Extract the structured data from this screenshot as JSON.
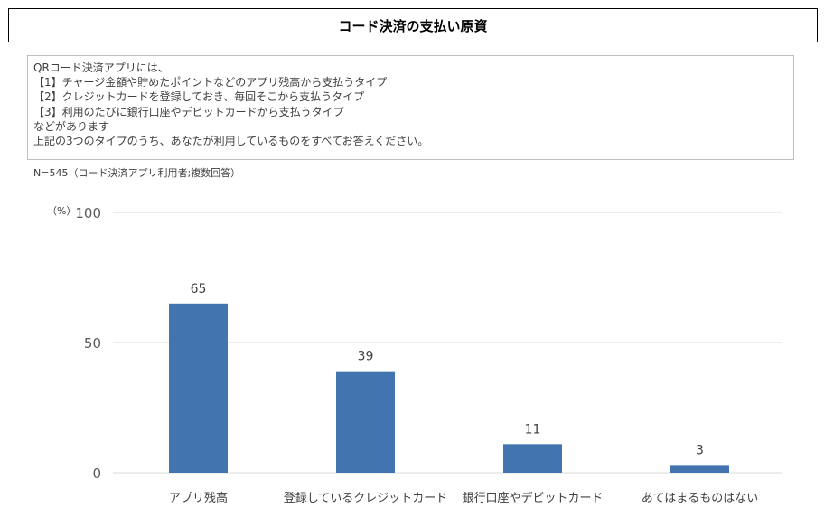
{
  "title": "コード決済の支払い原資",
  "question": [
    "QRコード決済アプリには、",
    "【1】チャージ金額や貯めたポイントなどのアプリ残高から支払うタイプ",
    "【2】クレジットカードを登録しておき、毎回そこから支払うタイプ",
    "【3】利用のたびに銀行口座やデビットカードから支払うタイプ",
    "などがあります",
    "上記の3つのタイプのうち、あなたが利用しているものをすべてお答えください。"
  ],
  "note": "N=545（コード決済アプリ利用者;複数回答）",
  "chart_data": {
    "type": "bar",
    "ylabel": "（%）",
    "ylim": [
      0,
      100
    ],
    "yticks": [
      0,
      50,
      100
    ],
    "grid": true,
    "categories": [
      "アプリ残高",
      "登録しているクレジットカード",
      "銀行口座やデビットカード",
      "あてはまるものはない"
    ],
    "values": [
      65,
      39,
      11,
      3
    ],
    "color": "#4275b0"
  }
}
